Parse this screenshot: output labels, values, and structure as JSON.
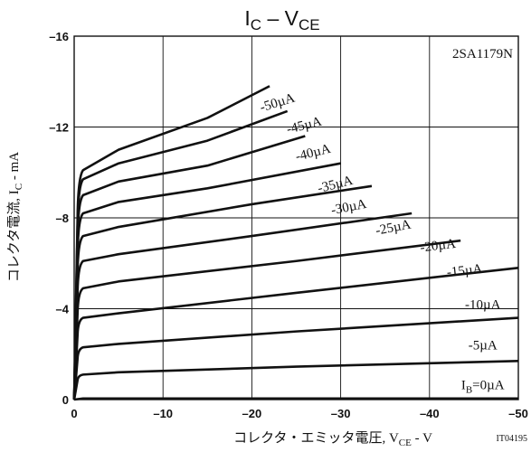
{
  "chart_data": {
    "type": "line",
    "title_main": "I",
    "title_sub1": "C",
    "title_mid": " – V",
    "title_sub2": "CE",
    "part_number": "2SA1179N",
    "figure_code": "IT04195",
    "xlabel": {
      "prefix": "コレクタ・エミッタ電圧, V",
      "sub": "CE",
      "suffix": " - V"
    },
    "ylabel": {
      "prefix": "コレクタ電流, I",
      "sub": "C",
      "suffix": " - mA"
    },
    "xlim": [
      0,
      -50
    ],
    "ylim": [
      0,
      -16
    ],
    "x_ticks": [
      0,
      -10,
      -20,
      -30,
      -40,
      -50
    ],
    "y_ticks": [
      0,
      -4,
      -8,
      -12,
      -16
    ],
    "x_tick_labels": [
      "0",
      "–10",
      "–20",
      "–30",
      "–40",
      "–50"
    ],
    "y_tick_labels": [
      "0",
      "–4",
      "–8",
      "–12",
      "–16"
    ],
    "grid": true,
    "series": [
      {
        "name": "IB=0µA",
        "x": [
          0,
          -1,
          -50
        ],
        "y": [
          0,
          -0.05,
          -0.05
        ]
      },
      {
        "name": "-5µA",
        "x": [
          0,
          -0.4,
          -1,
          -5,
          -25,
          -50
        ],
        "y": [
          0,
          -0.9,
          -1.1,
          -1.2,
          -1.45,
          -1.7
        ]
      },
      {
        "name": "-10µA",
        "x": [
          0,
          -0.4,
          -1,
          -5,
          -25,
          -50
        ],
        "y": [
          0,
          -1.9,
          -2.3,
          -2.45,
          -3.0,
          -3.6
        ]
      },
      {
        "name": "-15µA",
        "x": [
          0,
          -0.4,
          -1,
          -5,
          -25,
          -50
        ],
        "y": [
          0,
          -3.0,
          -3.6,
          -3.8,
          -4.7,
          -5.8
        ]
      },
      {
        "name": "-20µA",
        "x": [
          0,
          -0.4,
          -1,
          -5,
          -25,
          -43.5
        ],
        "y": [
          0,
          -4.0,
          -4.9,
          -5.2,
          -6.1,
          -7.0
        ]
      },
      {
        "name": "-25µA",
        "x": [
          0,
          -0.4,
          -1,
          -5,
          -20,
          -38
        ],
        "y": [
          0,
          -5.0,
          -6.1,
          -6.4,
          -7.2,
          -8.2
        ]
      },
      {
        "name": "-30µA",
        "x": [
          0,
          -0.4,
          -1,
          -5,
          -20,
          -33.5
        ],
        "y": [
          0,
          -5.9,
          -7.2,
          -7.6,
          -8.6,
          -9.4
        ]
      },
      {
        "name": "-35µA",
        "x": [
          0,
          -0.4,
          -1,
          -5,
          -15,
          -30
        ],
        "y": [
          0,
          -6.7,
          -8.2,
          -8.7,
          -9.3,
          -10.4
        ]
      },
      {
        "name": "-40µA",
        "x": [
          0,
          -0.4,
          -1,
          -5,
          -15,
          -26
        ],
        "y": [
          0,
          -7.4,
          -9.0,
          -9.6,
          -10.3,
          -11.6
        ]
      },
      {
        "name": "-45µA",
        "x": [
          0,
          -0.4,
          -1,
          -5,
          -15,
          -24
        ],
        "y": [
          0,
          -8.0,
          -9.7,
          -10.4,
          -11.4,
          -12.7
        ]
      },
      {
        "name": "-50µA",
        "x": [
          0,
          -0.4,
          -1,
          -5,
          -15,
          -22
        ],
        "y": [
          0,
          -8.4,
          -10.1,
          -11.0,
          -12.4,
          -13.8
        ]
      }
    ]
  }
}
